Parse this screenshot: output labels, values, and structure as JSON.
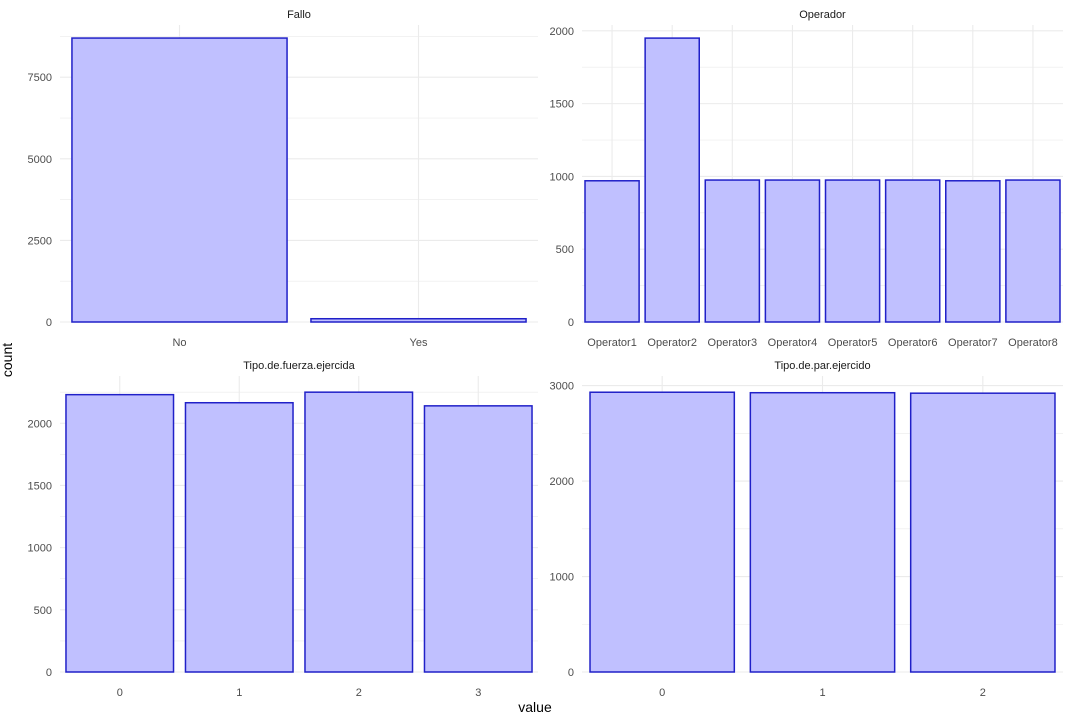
{
  "figure": {
    "xlabel": "value",
    "ylabel": "count",
    "bar_fill": "#c0c0ff",
    "bar_stroke": "#2020c8",
    "grid_color": "#ebebeb",
    "text_color": "#4d4d4d"
  },
  "chart_data": [
    {
      "type": "bar",
      "title": "Fallo",
      "categories": [
        "No",
        "Yes"
      ],
      "values": [
        8700,
        100
      ],
      "yticks": [
        0,
        2500,
        5000,
        7500
      ],
      "ylim": [
        0,
        9100
      ]
    },
    {
      "type": "bar",
      "title": "Operador",
      "categories": [
        "Operator1",
        "Operator2",
        "Operator3",
        "Operator4",
        "Operator5",
        "Operator6",
        "Operator7",
        "Operator8"
      ],
      "values": [
        970,
        1950,
        975,
        975,
        975,
        975,
        970,
        975
      ],
      "yticks": [
        0,
        500,
        1000,
        1500,
        2000
      ],
      "ylim": [
        0,
        2040
      ]
    },
    {
      "type": "bar",
      "title": "Tipo.de.fuerza.ejercida",
      "categories": [
        "0",
        "1",
        "2",
        "3"
      ],
      "values": [
        2230,
        2165,
        2250,
        2140
      ],
      "yticks": [
        0,
        500,
        1000,
        1500,
        2000
      ],
      "ylim": [
        0,
        2380
      ]
    },
    {
      "type": "bar",
      "title": "Tipo.de.par.ejercido",
      "categories": [
        "0",
        "1",
        "2"
      ],
      "values": [
        2930,
        2925,
        2920
      ],
      "yticks": [
        0,
        1000,
        2000,
        3000
      ],
      "ylim": [
        0,
        3100
      ]
    }
  ]
}
